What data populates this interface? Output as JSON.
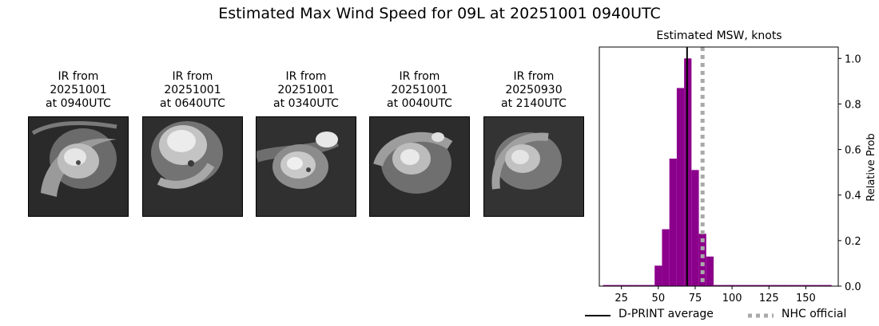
{
  "figure": {
    "title": "Estimated Max Wind Speed for 09L at 20251001 0940UTC"
  },
  "ir_panels": [
    {
      "label": "IR from",
      "date": "20251001",
      "time": "at 0940UTC"
    },
    {
      "label": "IR from",
      "date": "20251001",
      "time": "at 0640UTC"
    },
    {
      "label": "IR from",
      "date": "20251001",
      "time": "at 0340UTC"
    },
    {
      "label": "IR from",
      "date": "20251001",
      "time": "at 0040UTC"
    },
    {
      "label": "IR from",
      "date": "20250930",
      "time": "at 2140UTC"
    }
  ],
  "chart_data": {
    "type": "bar",
    "title": "Estimated MSW, knots",
    "ylabel": "Relative Prob",
    "xlim": [
      10,
      172
    ],
    "ylim": [
      0,
      1.05
    ],
    "xticks": [
      25,
      50,
      75,
      100,
      125,
      150
    ],
    "yticks": [
      0.0,
      0.2,
      0.4,
      0.6,
      0.8,
      1.0
    ],
    "ytick_labels": [
      "0.0",
      "0.2",
      "0.4",
      "0.6",
      "0.8",
      "1.0"
    ],
    "bar_color": "#8b008b",
    "bin_width": 5,
    "bins": [
      {
        "x": 15,
        "value": 0.005
      },
      {
        "x": 20,
        "value": 0.005
      },
      {
        "x": 25,
        "value": 0.005
      },
      {
        "x": 30,
        "value": 0.005
      },
      {
        "x": 35,
        "value": 0.005
      },
      {
        "x": 40,
        "value": 0.005
      },
      {
        "x": 45,
        "value": 0.005
      },
      {
        "x": 50,
        "value": 0.09
      },
      {
        "x": 55,
        "value": 0.25
      },
      {
        "x": 60,
        "value": 0.56
      },
      {
        "x": 65,
        "value": 0.87
      },
      {
        "x": 70,
        "value": 1.0
      },
      {
        "x": 75,
        "value": 0.51
      },
      {
        "x": 80,
        "value": 0.23
      },
      {
        "x": 85,
        "value": 0.13
      },
      {
        "x": 90,
        "value": 0.005
      },
      {
        "x": 95,
        "value": 0.005
      },
      {
        "x": 100,
        "value": 0.005
      },
      {
        "x": 105,
        "value": 0.005
      },
      {
        "x": 110,
        "value": 0.005
      },
      {
        "x": 115,
        "value": 0.005
      },
      {
        "x": 120,
        "value": 0.005
      },
      {
        "x": 125,
        "value": 0.005
      },
      {
        "x": 130,
        "value": 0.005
      },
      {
        "x": 135,
        "value": 0.005
      },
      {
        "x": 140,
        "value": 0.005
      },
      {
        "x": 145,
        "value": 0.005
      },
      {
        "x": 150,
        "value": 0.005
      },
      {
        "x": 155,
        "value": 0.005
      },
      {
        "x": 160,
        "value": 0.005
      },
      {
        "x": 165,
        "value": 0.005
      }
    ],
    "dprint_average": 69.5,
    "nhc_official": 80,
    "legend": [
      {
        "label": "D-PRINT average",
        "style": "solid",
        "color": "#000000"
      },
      {
        "label": "NHC official",
        "style": "dotted",
        "color": "#a9a9a9"
      }
    ],
    "legend_placement": "bottom"
  }
}
